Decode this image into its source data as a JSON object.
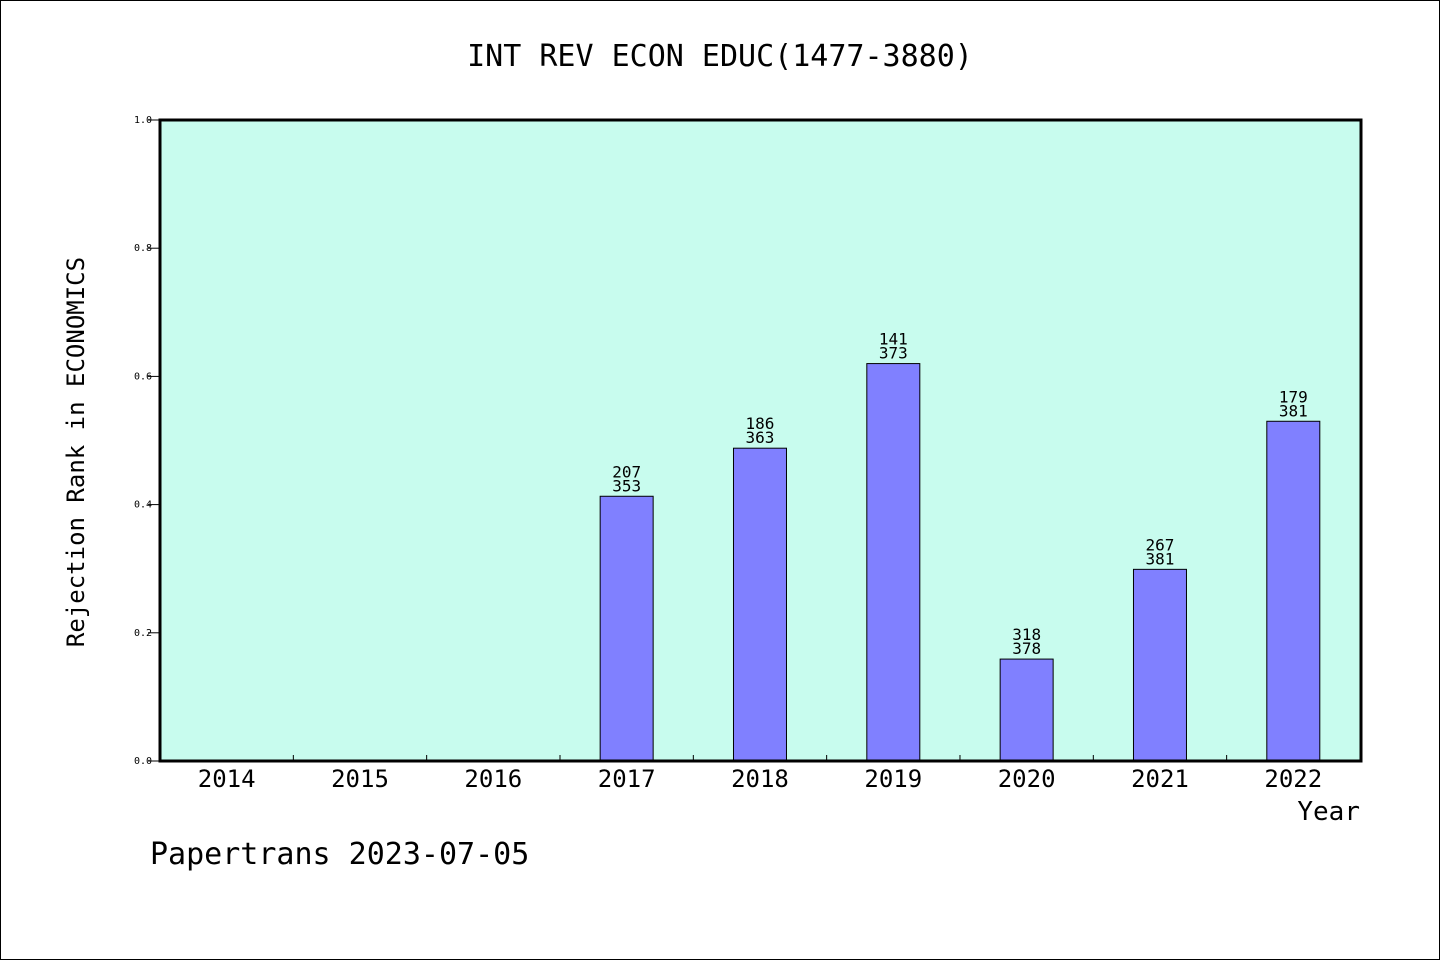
{
  "chart_data": {
    "type": "bar",
    "title": "INT REV ECON EDUC(1477-3880)",
    "xlabel": "Year",
    "ylabel": "Rejection Rank in ECONOMICS",
    "ylim": [
      0,
      1.0
    ],
    "yticks": [
      "0.0",
      "0.2",
      "0.4",
      "0.6",
      "0.8",
      "1.0"
    ],
    "categories": [
      "2014",
      "2015",
      "2016",
      "2017",
      "2018",
      "2019",
      "2020",
      "2021",
      "2022"
    ],
    "values": [
      null,
      null,
      null,
      0.413,
      0.488,
      0.62,
      0.159,
      0.299,
      0.53
    ],
    "labels_top": [
      "",
      "",
      "",
      "207",
      "186",
      "141",
      "318",
      "267",
      "179"
    ],
    "labels_bottom": [
      "",
      "",
      "",
      "353",
      "363",
      "373",
      "378",
      "381",
      "381"
    ],
    "colors": {
      "plot_background": "#c8fcee",
      "bar_fill": "#8080ff",
      "bar_stroke": "#000000",
      "axis": "#000000"
    },
    "grid": false
  },
  "footer": {
    "watermark": "Papertrans 2023-07-05"
  }
}
